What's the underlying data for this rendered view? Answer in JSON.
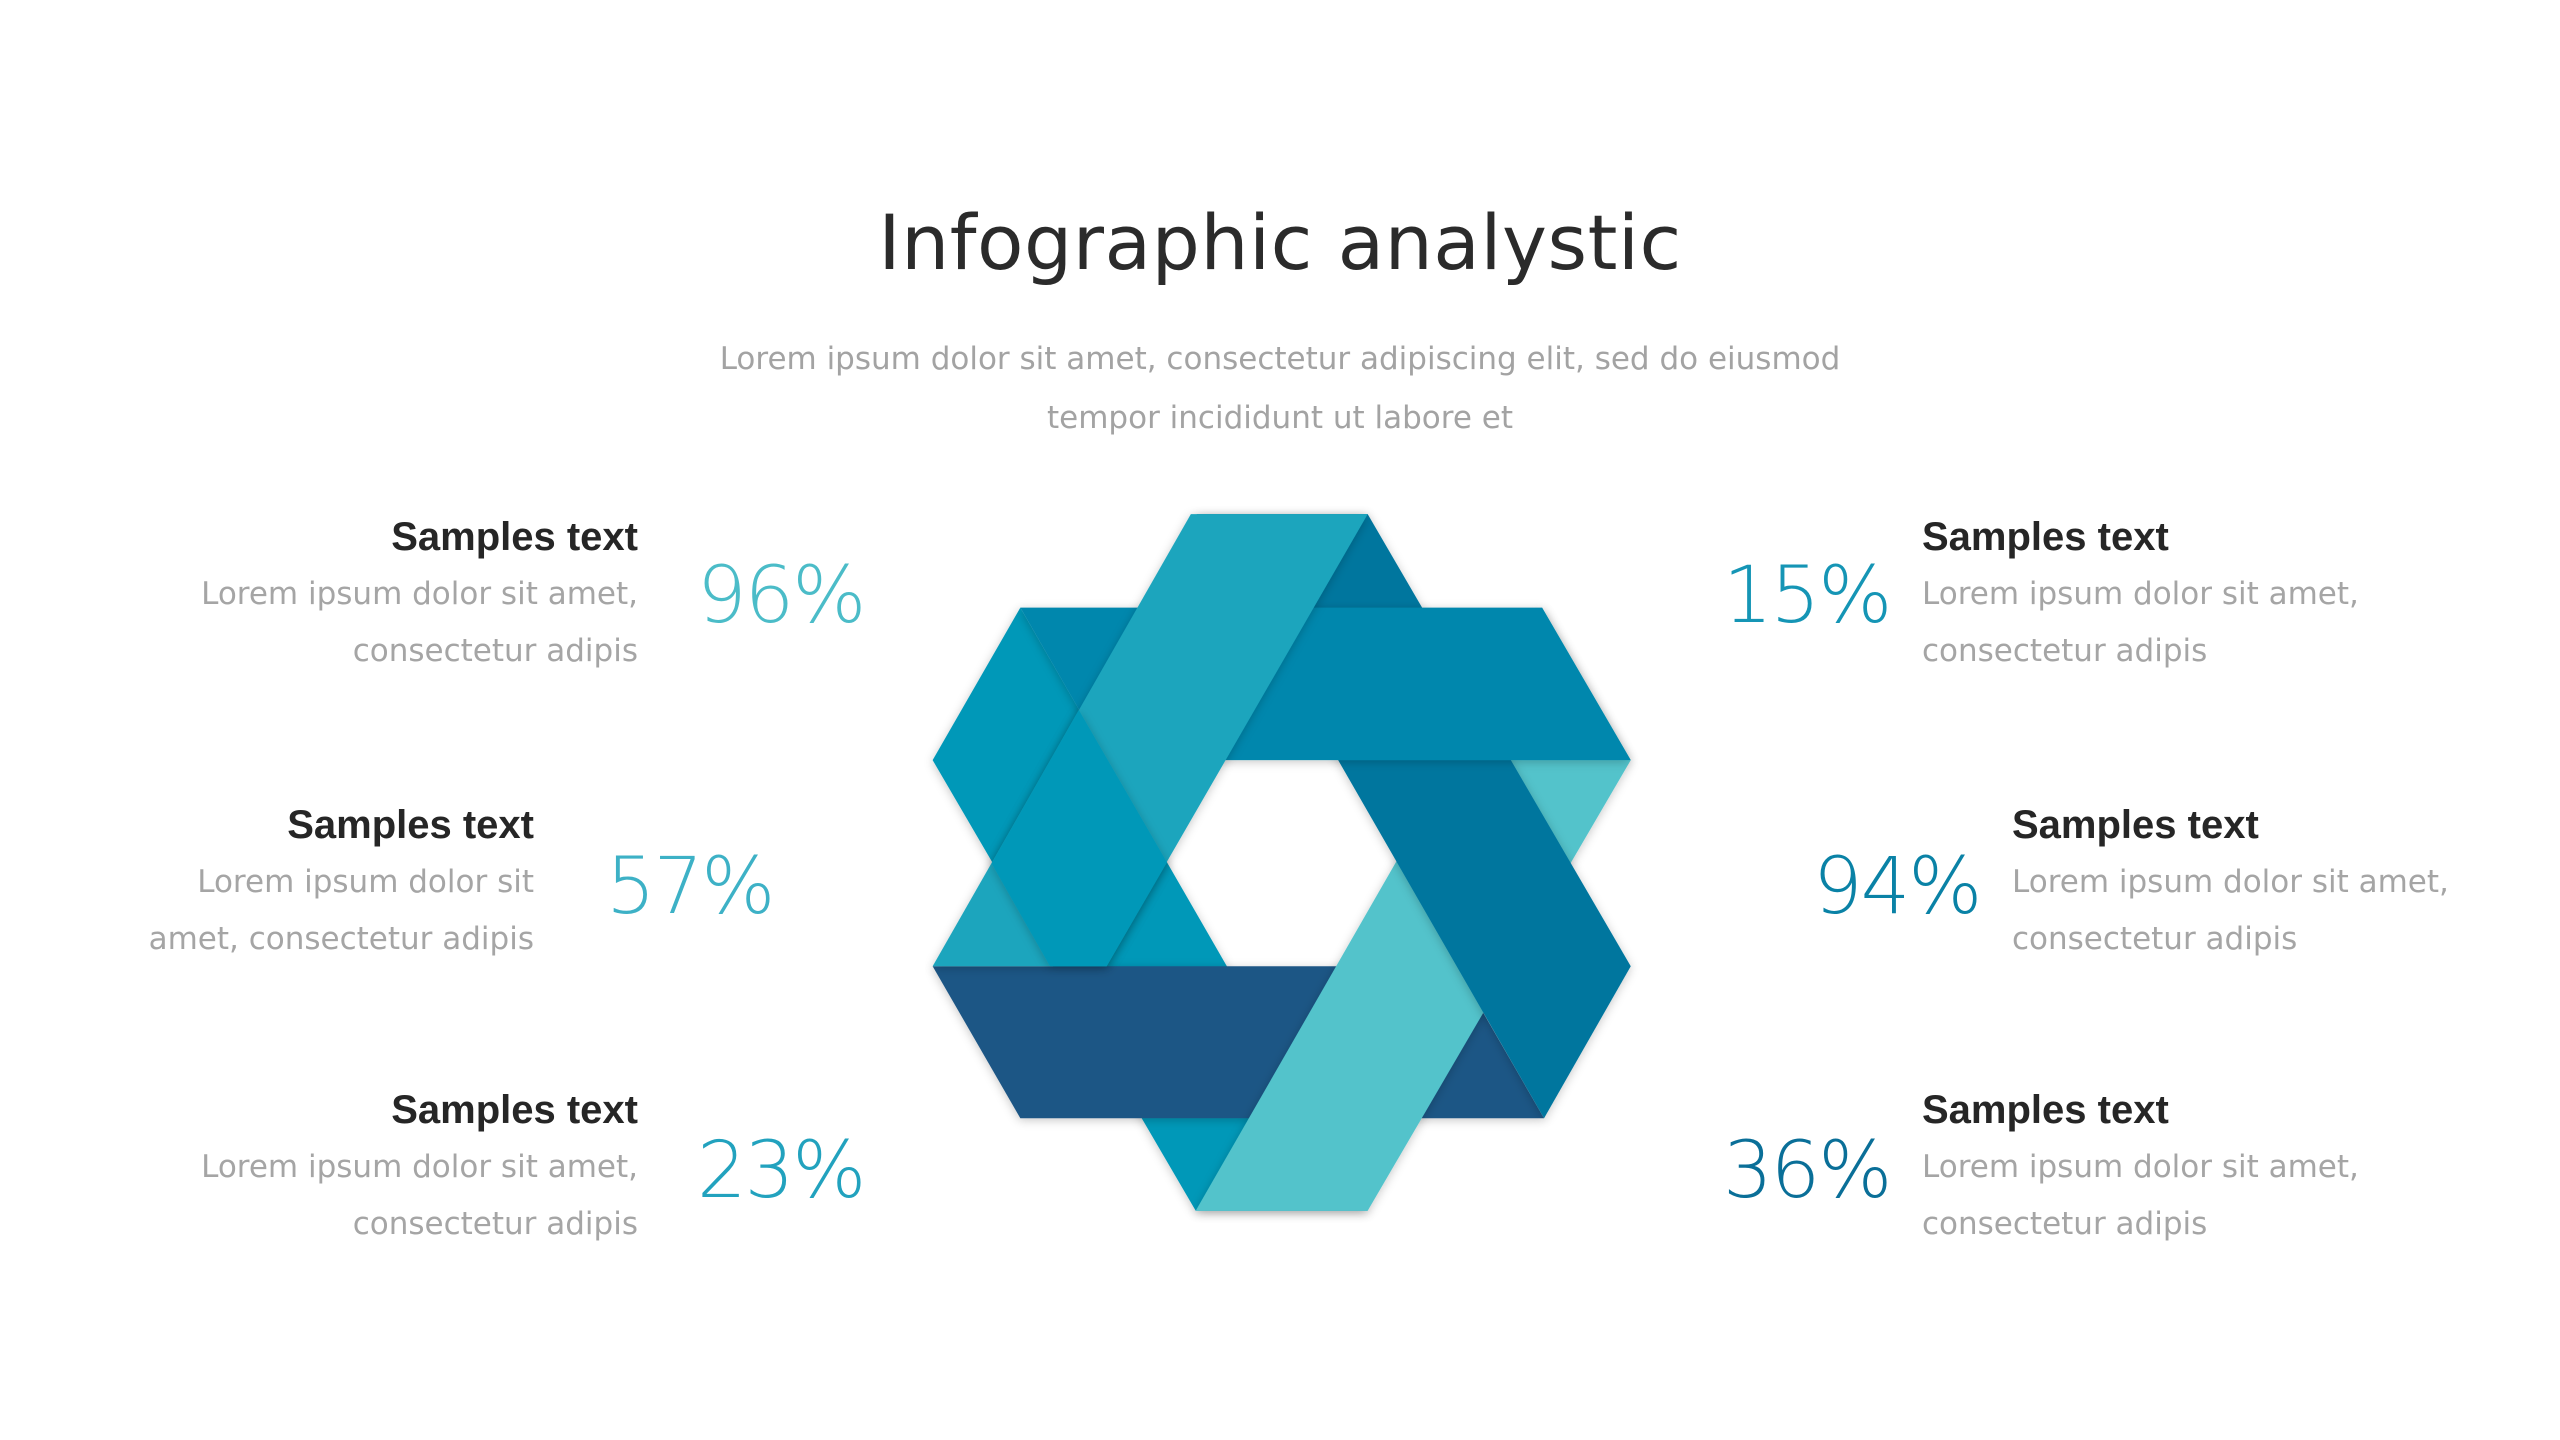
{
  "header": {
    "title": "Infographic analystic",
    "subtitle_lines": [
      "Lorem ipsum dolor sit amet, consectetur adipiscing elit, sed do eiusmod",
      "tempor incididunt ut labore et"
    ]
  },
  "left_items": [
    {
      "heading": "Samples text",
      "desc": [
        "Lorem ipsum dolor sit amet,",
        "consectetur adipis"
      ],
      "percent": "96%",
      "color": "#4bbcc8"
    },
    {
      "heading": "Samples text",
      "desc": [
        "Lorem ipsum dolor sit",
        "amet, consectetur adipis"
      ],
      "percent": "57%",
      "color": "#3db1c6"
    },
    {
      "heading": "Samples text",
      "desc": [
        "Lorem ipsum dolor sit amet,",
        "consectetur adipis"
      ],
      "percent": "23%",
      "color": "#22a2be"
    }
  ],
  "right_items": [
    {
      "heading": "Samples text",
      "desc": [
        "Lorem ipsum dolor sit amet,",
        "consectetur adipis"
      ],
      "percent": "15%",
      "color": "#1595b5"
    },
    {
      "heading": "Samples text",
      "desc": [
        "Lorem ipsum dolor sit amet,",
        "consectetur adipis"
      ],
      "percent": "94%",
      "color": "#0a82a6"
    },
    {
      "heading": "Samples text",
      "desc": [
        "Lorem ipsum dolor sit amet,",
        "consectetur adipis"
      ],
      "percent": "36%",
      "color": "#0a6f98"
    }
  ],
  "ribbon_colors": {
    "top_left_diagonal": "#1ca5bd",
    "top_horizontal": "#0087ad",
    "right_diagonal": "#00769e",
    "bottom_right_diagonal": "#52c3cb",
    "bottom_horizontal": "#1e5785",
    "left_diagonal": "#0398b8"
  }
}
